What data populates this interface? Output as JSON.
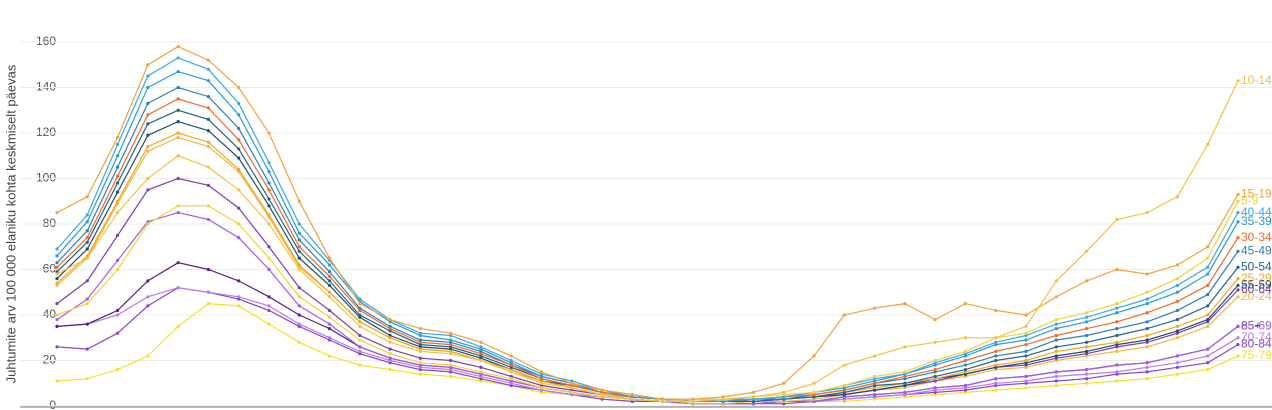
{
  "chart_data": {
    "type": "line",
    "y_label": "Juhtumite arv 100 000 elaniku kohta keskmiselt päevas",
    "categories": [
      null,
      null,
      null,
      null,
      null,
      null,
      null,
      null,
      null,
      null,
      null,
      null,
      null,
      null,
      null,
      null,
      null,
      null,
      null,
      null,
      null,
      null,
      null,
      null,
      null,
      null,
      null,
      null,
      null,
      null,
      null,
      null,
      null,
      null,
      null,
      null,
      null,
      null,
      null,
      null
    ],
    "ylim": [
      0,
      160
    ],
    "yticks": [
      0,
      20,
      40,
      60,
      80,
      100,
      120,
      140,
      160
    ],
    "grid": true,
    "series": [
      {
        "name": "75-79",
        "color": "#f5e12a",
        "values": [
          11,
          12,
          16,
          22,
          35,
          45,
          44,
          36,
          28,
          22,
          18,
          16,
          14,
          13,
          11,
          9,
          6,
          5,
          3,
          2,
          2,
          1,
          1,
          1,
          1,
          2,
          2,
          3,
          4,
          5,
          6,
          7,
          8,
          9,
          10,
          11,
          12,
          14,
          16,
          22
        ]
      },
      {
        "name": "80-84",
        "color": "#8a44d0",
        "values": [
          26,
          25,
          32,
          44,
          52,
          50,
          47,
          42,
          35,
          29,
          23,
          19,
          16,
          15,
          12,
          9,
          7,
          5,
          3,
          2,
          2,
          1,
          1,
          1,
          1,
          2,
          3,
          4,
          5,
          6,
          7,
          9,
          10,
          11,
          12,
          14,
          15,
          17,
          19,
          27
        ]
      },
      {
        "name": "70-74",
        "color": "#b67cf0",
        "values": [
          35,
          36,
          40,
          48,
          52,
          50,
          48,
          44,
          36,
          30,
          24,
          20,
          17,
          16,
          13,
          10,
          7,
          5,
          4,
          3,
          2,
          1,
          1,
          1,
          2,
          2,
          3,
          4,
          5,
          7,
          8,
          10,
          11,
          13,
          14,
          15,
          17,
          19,
          22,
          30
        ]
      },
      {
        "name": "85+",
        "color": "#5a1f8c",
        "values": [
          35,
          36,
          42,
          55,
          63,
          60,
          55,
          48,
          40,
          34,
          26,
          21,
          18,
          17,
          14,
          11,
          8,
          6,
          4,
          3,
          2,
          1,
          1,
          1,
          2,
          2,
          4,
          5,
          6,
          8,
          9,
          12,
          13,
          15,
          16,
          18,
          19,
          22,
          25,
          35
        ]
      },
      {
        "name": "65-69",
        "color": "#a45ee5",
        "values": [
          38,
          47,
          64,
          81,
          85,
          82,
          74,
          60,
          44,
          36,
          26,
          21,
          18,
          17,
          14,
          11,
          8,
          6,
          4,
          3,
          2,
          1,
          1,
          1,
          2,
          2,
          4,
          5,
          6,
          8,
          9,
          12,
          13,
          15,
          16,
          18,
          19,
          22,
          25,
          35
        ]
      },
      {
        "name": "20-24",
        "color": "#f0b847",
        "values": [
          53,
          65,
          89,
          112,
          118,
          114,
          103,
          83,
          61,
          50,
          37,
          30,
          25,
          24,
          20,
          15,
          11,
          8,
          5,
          4,
          3,
          1,
          1,
          2,
          2,
          3,
          5,
          7,
          8,
          11,
          13,
          16,
          17,
          20,
          22,
          24,
          26,
          30,
          35,
          48
        ]
      },
      {
        "name": "60-64",
        "color": "#7b3fb0",
        "values": [
          45,
          55,
          75,
          95,
          100,
          97,
          87,
          70,
          52,
          42,
          31,
          25,
          21,
          20,
          17,
          13,
          9,
          7,
          5,
          3,
          2,
          2,
          2,
          2,
          3,
          4,
          5,
          7,
          9,
          11,
          14,
          17,
          18,
          21,
          23,
          26,
          28,
          32,
          37,
          51
        ]
      },
      {
        "name": "55-59",
        "color": "#1f4e6e",
        "values": [
          56,
          69,
          94,
          119,
          125,
          121,
          109,
          88,
          65,
          53,
          39,
          31,
          26,
          25,
          21,
          16,
          11,
          9,
          6,
          4,
          3,
          2,
          2,
          2,
          3,
          4,
          5,
          7,
          9,
          12,
          14,
          17,
          19,
          22,
          24,
          27,
          29,
          33,
          38,
          53
        ]
      },
      {
        "name": "25-29",
        "color": "#f5a623",
        "values": [
          54,
          66,
          90,
          114,
          120,
          116,
          104,
          84,
          62,
          50,
          37,
          30,
          25,
          24,
          20,
          16,
          11,
          8,
          5,
          4,
          3,
          2,
          2,
          2,
          3,
          4,
          6,
          8,
          10,
          12,
          15,
          18,
          20,
          24,
          26,
          28,
          31,
          35,
          40,
          56
        ]
      },
      {
        "name": "50-54",
        "color": "#25628d",
        "values": [
          59,
          72,
          98,
          124,
          130,
          126,
          113,
          91,
          68,
          55,
          40,
          33,
          27,
          26,
          22,
          17,
          12,
          9,
          6,
          4,
          3,
          2,
          2,
          2,
          3,
          4,
          6,
          9,
          10,
          13,
          16,
          20,
          22,
          26,
          28,
          31,
          34,
          38,
          44,
          61
        ]
      },
      {
        "name": "45-49",
        "color": "#2f7fb5",
        "values": [
          63,
          77,
          105,
          133,
          140,
          136,
          122,
          98,
          73,
          59,
          43,
          35,
          29,
          28,
          24,
          18,
          13,
          10,
          6,
          4,
          3,
          2,
          2,
          3,
          3,
          5,
          7,
          10,
          12,
          15,
          18,
          22,
          24,
          29,
          31,
          34,
          37,
          42,
          49,
          68
        ]
      },
      {
        "name": "30-34",
        "color": "#f06a2a",
        "values": [
          61,
          74,
          101,
          128,
          135,
          131,
          117,
          95,
          70,
          57,
          42,
          34,
          28,
          27,
          23,
          18,
          12,
          9,
          6,
          4,
          3,
          2,
          2,
          3,
          4,
          5,
          7,
          10,
          13,
          16,
          20,
          24,
          27,
          31,
          34,
          37,
          41,
          46,
          53,
          74
        ]
      },
      {
        "name": "35-39",
        "color": "#2b9ad9",
        "values": [
          66,
          81,
          110,
          140,
          147,
          143,
          128,
          103,
          76,
          62,
          46,
          37,
          31,
          29,
          25,
          19,
          13,
          10,
          7,
          4,
          3,
          2,
          2,
          3,
          4,
          6,
          8,
          11,
          14,
          18,
          22,
          27,
          29,
          34,
          37,
          41,
          45,
          50,
          58,
          81
        ]
      },
      {
        "name": "40-44",
        "color": "#3ca7e8",
        "values": [
          69,
          84,
          115,
          145,
          153,
          148,
          133,
          107,
          80,
          64,
          47,
          38,
          32,
          31,
          26,
          20,
          14,
          11,
          7,
          5,
          3,
          3,
          3,
          3,
          4,
          6,
          9,
          12,
          14,
          19,
          23,
          28,
          31,
          36,
          39,
          43,
          47,
          53,
          61,
          85
        ]
      },
      {
        "name": "5-9",
        "color": "#f2d33b",
        "values": [
          40,
          45,
          60,
          80,
          88,
          88,
          80,
          65,
          48,
          39,
          29,
          23,
          19,
          18,
          15,
          12,
          8,
          6,
          4,
          3,
          2,
          3,
          3,
          4,
          5,
          6,
          9,
          13,
          15,
          20,
          24,
          30,
          32,
          38,
          41,
          45,
          50,
          56,
          65,
          90
        ]
      },
      {
        "name": "15-19",
        "color": "#f7a13a",
        "values": [
          85,
          92,
          118,
          150,
          158,
          152,
          140,
          120,
          90,
          65,
          45,
          38,
          34,
          32,
          28,
          22,
          15,
          10,
          7,
          5,
          3,
          3,
          4,
          6,
          10,
          22,
          40,
          43,
          45,
          38,
          45,
          42,
          40,
          48,
          55,
          60,
          58,
          62,
          70,
          93
        ]
      },
      {
        "name": "10-14",
        "color": "#f6c142",
        "values": [
          58,
          65,
          85,
          100,
          110,
          105,
          95,
          80,
          60,
          48,
          35,
          28,
          24,
          23,
          20,
          15,
          10,
          8,
          5,
          3,
          2,
          2,
          3,
          4,
          6,
          10,
          18,
          22,
          26,
          28,
          30,
          30,
          35,
          55,
          68,
          82,
          85,
          92,
          115,
          143
        ]
      }
    ]
  }
}
